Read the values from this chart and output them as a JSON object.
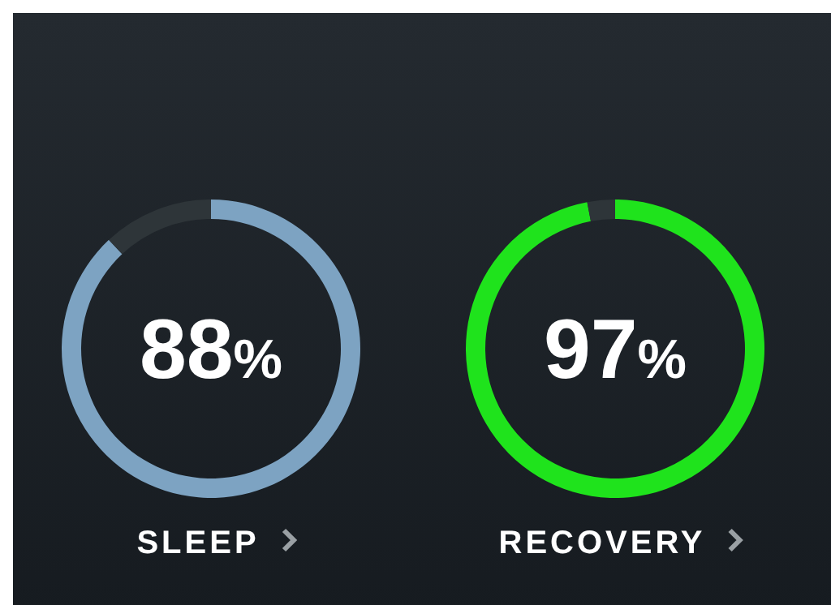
{
  "chart_data": [
    {
      "type": "donut",
      "title": "SLEEP",
      "categories": [
        null,
        null
      ],
      "values": [
        88,
        12
      ],
      "colors": [
        "#7da3c2",
        "#2e3539"
      ],
      "value_labels": [
        "88%",
        null
      ]
    },
    {
      "type": "donut",
      "title": "RECOVERY",
      "categories": [
        null,
        null
      ],
      "values": [
        97,
        3
      ],
      "colors": [
        "#1fe31c",
        "#2e3539"
      ],
      "value_labels": [
        "97%",
        null
      ]
    }
  ]
}
